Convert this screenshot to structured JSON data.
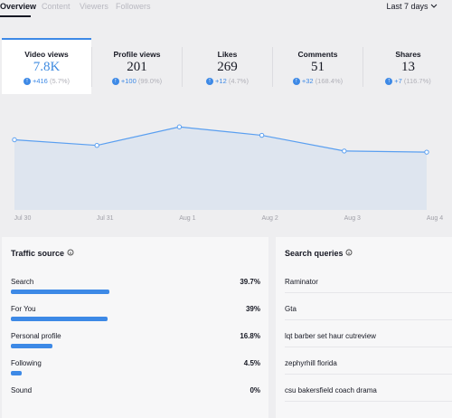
{
  "tabs": [
    "Overview",
    "Content",
    "Viewers",
    "Followers"
  ],
  "date_range": "Last 7 days",
  "metrics": [
    {
      "label": "Video views",
      "value": "7.8K",
      "change": "+416",
      "percent": "(5.7%)"
    },
    {
      "label": "Profile views",
      "value": "201",
      "change": "+100",
      "percent": "(99.0%)"
    },
    {
      "label": "Likes",
      "value": "269",
      "change": "+12",
      "percent": "(4.7%)"
    },
    {
      "label": "Comments",
      "value": "51",
      "change": "+32",
      "percent": "(168.4%)"
    },
    {
      "label": "Shares",
      "value": "13",
      "change": "+7",
      "percent": "(116.7%)"
    }
  ],
  "chart_data": {
    "type": "line",
    "x": [
      "Jul 30",
      "Jul 31",
      "Aug 1",
      "Aug 2",
      "Aug 3",
      "Aug 4"
    ],
    "series": [
      {
        "name": "Video views",
        "color": "#5a9ff0",
        "values": [
          1250,
          1150,
          1480,
          1330,
          1050,
          1030
        ]
      }
    ],
    "ylim": [
      0,
      2000
    ]
  },
  "traffic_source": {
    "title": "Traffic source",
    "items": [
      {
        "name": "Search",
        "value": 39.7,
        "label": "39.7%"
      },
      {
        "name": "For You",
        "value": 39,
        "label": "39%"
      },
      {
        "name": "Personal profile",
        "value": 16.8,
        "label": "16.8%"
      },
      {
        "name": "Following",
        "value": 4.5,
        "label": "4.5%"
      },
      {
        "name": "Sound",
        "value": 0,
        "label": "0%"
      }
    ]
  },
  "search_queries": {
    "title": "Search queries",
    "items": [
      "Raminator",
      "Gta",
      "lqt barber set haur cutreview",
      "zephyrhill florida",
      "csu bakersfield coach drama"
    ]
  }
}
